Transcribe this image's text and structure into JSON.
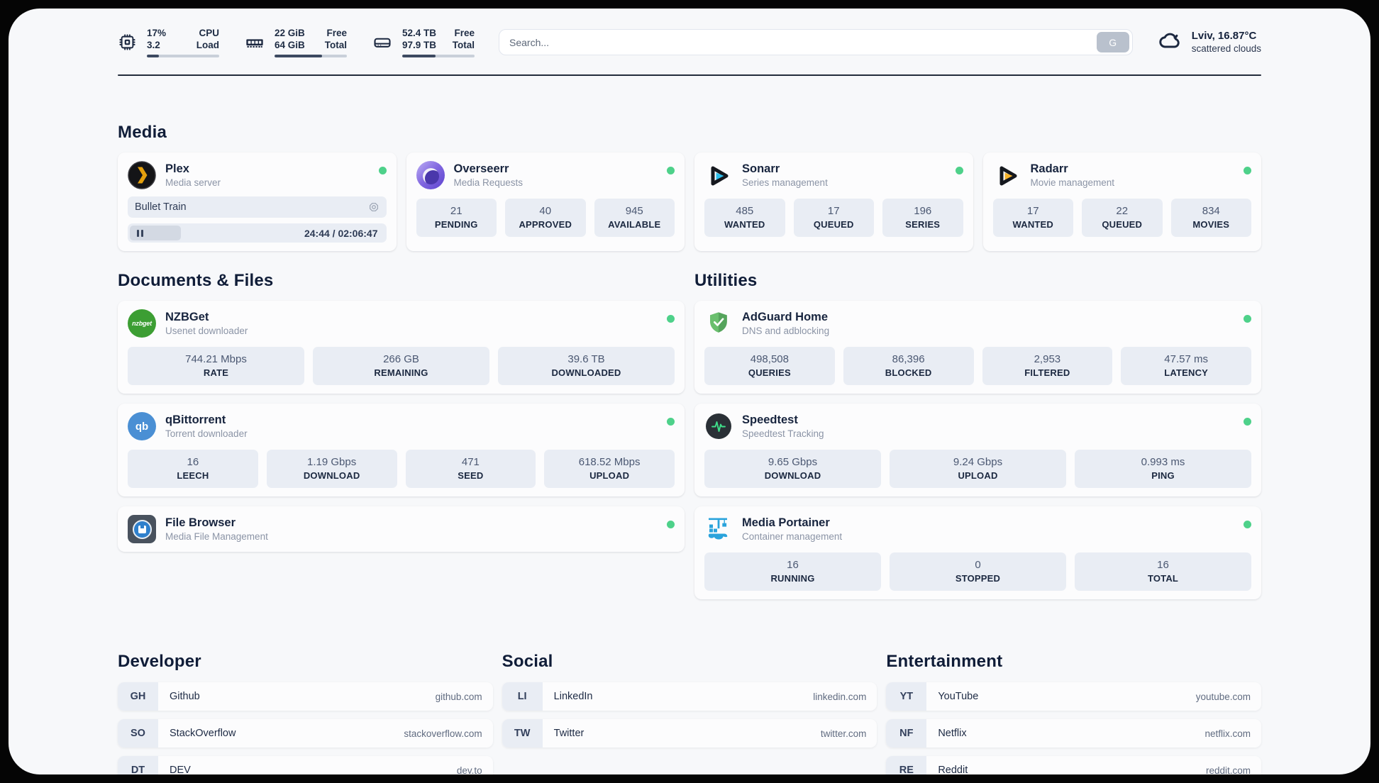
{
  "theme": {
    "accent_green": "#4ed18a",
    "stat_box_bg": "#e9edf4",
    "page_bg": "#f7f8fa",
    "divider": "#232c3b"
  },
  "header": {
    "stats": [
      {
        "icon": "cpu-chip-icon",
        "value_top": "17%",
        "value_bottom": "3.2",
        "label_top": "CPU",
        "label_bottom": "Load",
        "progress": 17
      },
      {
        "icon": "memory-icon",
        "value_top": "22 GiB",
        "value_bottom": "64 GiB",
        "label_top": "Free",
        "label_bottom": "Total",
        "progress": 66
      },
      {
        "icon": "hard-drive-icon",
        "value_top": "52.4 TB",
        "value_bottom": "97.9 TB",
        "label_top": "Free",
        "label_bottom": "Total",
        "progress": 46
      }
    ],
    "search": {
      "placeholder": "Search...",
      "button_label": "G"
    },
    "weather": {
      "icon": "cloud-icon",
      "location_temp": "Lviv, 16.87°C",
      "condition": "scattered clouds"
    }
  },
  "media": {
    "section_title": "Media",
    "plex": {
      "icon": "plex-icon",
      "title": "Plex",
      "subtitle": "Media server",
      "status": "online",
      "now_playing": "Bullet Train",
      "time_display": "24:44 / 02:06:47",
      "elapsed": "24:44",
      "duration": "02:06:47",
      "progress_percent": 20
    },
    "overseerr": {
      "icon": "overseerr-icon",
      "title": "Overseerr",
      "subtitle": "Media Requests",
      "status": "online",
      "stats": [
        {
          "value": "21",
          "label": "PENDING"
        },
        {
          "value": "40",
          "label": "APPROVED"
        },
        {
          "value": "945",
          "label": "AVAILABLE"
        }
      ]
    },
    "sonarr": {
      "icon": "sonarr-icon",
      "title": "Sonarr",
      "subtitle": "Series management",
      "status": "online",
      "stats": [
        {
          "value": "485",
          "label": "WANTED"
        },
        {
          "value": "17",
          "label": "QUEUED"
        },
        {
          "value": "196",
          "label": "SERIES"
        }
      ]
    },
    "radarr": {
      "icon": "radarr-icon",
      "title": "Radarr",
      "subtitle": "Movie management",
      "status": "online",
      "stats": [
        {
          "value": "17",
          "label": "WANTED"
        },
        {
          "value": "22",
          "label": "QUEUED"
        },
        {
          "value": "834",
          "label": "MOVIES"
        }
      ]
    }
  },
  "documents": {
    "section_title": "Documents & Files",
    "nzbget": {
      "icon": "nzbget-icon",
      "icon_text": "nzbget",
      "title": "NZBGet",
      "subtitle": "Usenet downloader",
      "status": "online",
      "stats": [
        {
          "value": "744.21 Mbps",
          "label": "RATE"
        },
        {
          "value": "266 GB",
          "label": "REMAINING"
        },
        {
          "value": "39.6 TB",
          "label": "DOWNLOADED"
        }
      ]
    },
    "qbittorrent": {
      "icon": "qbittorrent-icon",
      "icon_text": "qb",
      "title": "qBittorrent",
      "subtitle": "Torrent downloader",
      "status": "online",
      "stats": [
        {
          "value": "16",
          "label": "LEECH"
        },
        {
          "value": "1.19 Gbps",
          "label": "DOWNLOAD"
        },
        {
          "value": "471",
          "label": "SEED"
        },
        {
          "value": "618.52 Mbps",
          "label": "UPLOAD"
        }
      ]
    },
    "filebrowser": {
      "icon": "filebrowser-icon",
      "title": "File Browser",
      "subtitle": "Media File Management",
      "status": "online"
    }
  },
  "utilities": {
    "section_title": "Utilities",
    "adguard": {
      "icon": "adguard-shield-icon",
      "title": "AdGuard Home",
      "subtitle": "DNS and adblocking",
      "status": "online",
      "stats": [
        {
          "value": "498,508",
          "label": "QUERIES"
        },
        {
          "value": "86,396",
          "label": "BLOCKED"
        },
        {
          "value": "2,953",
          "label": "FILTERED"
        },
        {
          "value": "47.57 ms",
          "label": "LATENCY"
        }
      ]
    },
    "speedtest": {
      "icon": "speedtest-pulse-icon",
      "title": "Speedtest",
      "subtitle": "Speedtest Tracking",
      "status": "online",
      "stats": [
        {
          "value": "9.65 Gbps",
          "label": "DOWNLOAD"
        },
        {
          "value": "9.24 Gbps",
          "label": "UPLOAD"
        },
        {
          "value": "0.993 ms",
          "label": "PING"
        }
      ]
    },
    "portainer": {
      "icon": "portainer-crane-icon",
      "title": "Media Portainer",
      "subtitle": "Container management",
      "status": "online",
      "stats": [
        {
          "value": "16",
          "label": "RUNNING"
        },
        {
          "value": "0",
          "label": "STOPPED"
        },
        {
          "value": "16",
          "label": "TOTAL"
        }
      ]
    }
  },
  "links": {
    "developer": {
      "section_title": "Developer",
      "items": [
        {
          "abbr": "GH",
          "name": "Github",
          "url": "github.com"
        },
        {
          "abbr": "SO",
          "name": "StackOverflow",
          "url": "stackoverflow.com"
        },
        {
          "abbr": "DT",
          "name": "DEV",
          "url": "dev.to"
        }
      ]
    },
    "social": {
      "section_title": "Social",
      "items": [
        {
          "abbr": "LI",
          "name": "LinkedIn",
          "url": "linkedin.com"
        },
        {
          "abbr": "TW",
          "name": "Twitter",
          "url": "twitter.com"
        }
      ]
    },
    "entertainment": {
      "section_title": "Entertainment",
      "items": [
        {
          "abbr": "YT",
          "name": "YouTube",
          "url": "youtube.com"
        },
        {
          "abbr": "NF",
          "name": "Netflix",
          "url": "netflix.com"
        },
        {
          "abbr": "RE",
          "name": "Reddit",
          "url": "reddit.com"
        }
      ]
    }
  }
}
